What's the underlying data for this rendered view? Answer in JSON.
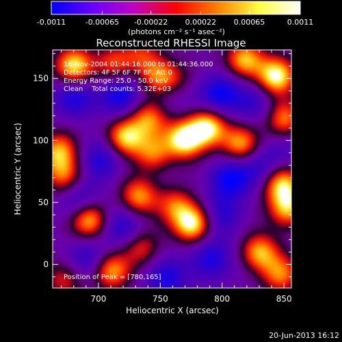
{
  "chart_data": {
    "type": "heatmap",
    "title": "Reconstructed RHESSI Image",
    "xlabel": "Heliocentric X (arcsec)",
    "ylabel": "Heliocentric Y (arcsec)",
    "xlim": [
      663,
      856
    ],
    "ylim": [
      -19,
      173
    ],
    "x_ticks": [
      700,
      750,
      800,
      850
    ],
    "y_ticks": [
      0,
      50,
      100,
      150
    ],
    "colorbar": {
      "ticks": [
        -0.0011,
        -0.00065,
        -0.00022,
        0.00022,
        0.00065,
        0.0011
      ],
      "tick_labels": [
        "-0.0011",
        "-0.00065",
        "-0.00022",
        "0.00022",
        "0.00065",
        "0.0011"
      ],
      "units_label": "(photons cm⁻² s⁻¹ asec⁻²)",
      "range": [
        -0.0011,
        0.0011
      ],
      "colors": [
        "#0000ff",
        "#6a00ff",
        "#c000c0",
        "#ff0000",
        "#ff8000",
        "#ffff40",
        "#ffffff"
      ]
    },
    "annotations": [
      "16-Nov-2004 01:44:16.000 to 01:44:36.000",
      "Detectors: 4F 5F 6F 7F 8F, Att 0",
      "Energy Range: 25.0 - 50.0 keV",
      "Clean    Total counts: 5.32E+03"
    ],
    "peak_label": "Position of Peak = [780,165]",
    "blobs_hot": [
      [
        680,
        160,
        1.0
      ],
      [
        712,
        162,
        0.55
      ],
      [
        747,
        152,
        0.6
      ],
      [
        760,
        148,
        0.55
      ],
      [
        818,
        165,
        0.85
      ],
      [
        843,
        152,
        1.0
      ],
      [
        850,
        118,
        0.75
      ],
      [
        740,
        118,
        0.65
      ],
      [
        769,
        101,
        1.0
      ],
      [
        788,
        111,
        1.0
      ],
      [
        815,
        97,
        0.8
      ],
      [
        668,
        92,
        0.75
      ],
      [
        672,
        72,
        0.65
      ],
      [
        721,
        103,
        0.9
      ],
      [
        744,
        90,
        0.65
      ],
      [
        732,
        55,
        0.75
      ],
      [
        762,
        48,
        0.55
      ],
      [
        848,
        65,
        0.85
      ],
      [
        853,
        45,
        0.8
      ],
      [
        692,
        37,
        0.95
      ],
      [
        776,
        33,
        1.0
      ],
      [
        734,
        14,
        0.55
      ],
      [
        710,
        -5,
        0.75
      ],
      [
        830,
        10,
        0.8
      ],
      [
        847,
        -8,
        0.65
      ],
      [
        672,
        -12,
        0.5
      ],
      [
        735,
        170,
        0.45
      ]
    ],
    "blobs_cold": [
      [
        718,
        138,
        0.9
      ],
      [
        680,
        135,
        0.8
      ],
      [
        703,
        85,
        0.75
      ],
      [
        798,
        138,
        0.9
      ],
      [
        826,
        130,
        0.6
      ],
      [
        685,
        50,
        0.8
      ],
      [
        720,
        30,
        0.7
      ],
      [
        806,
        70,
        0.9
      ],
      [
        831,
        80,
        0.55
      ],
      [
        790,
        5,
        0.8
      ],
      [
        755,
        -12,
        0.7
      ],
      [
        692,
        5,
        0.6
      ],
      [
        800,
        40,
        0.6
      ],
      [
        760,
        140,
        0.55
      ],
      [
        852,
        92,
        0.35
      ]
    ]
  },
  "footer": {
    "timestamp": "20-Jun-2013 16:12"
  }
}
